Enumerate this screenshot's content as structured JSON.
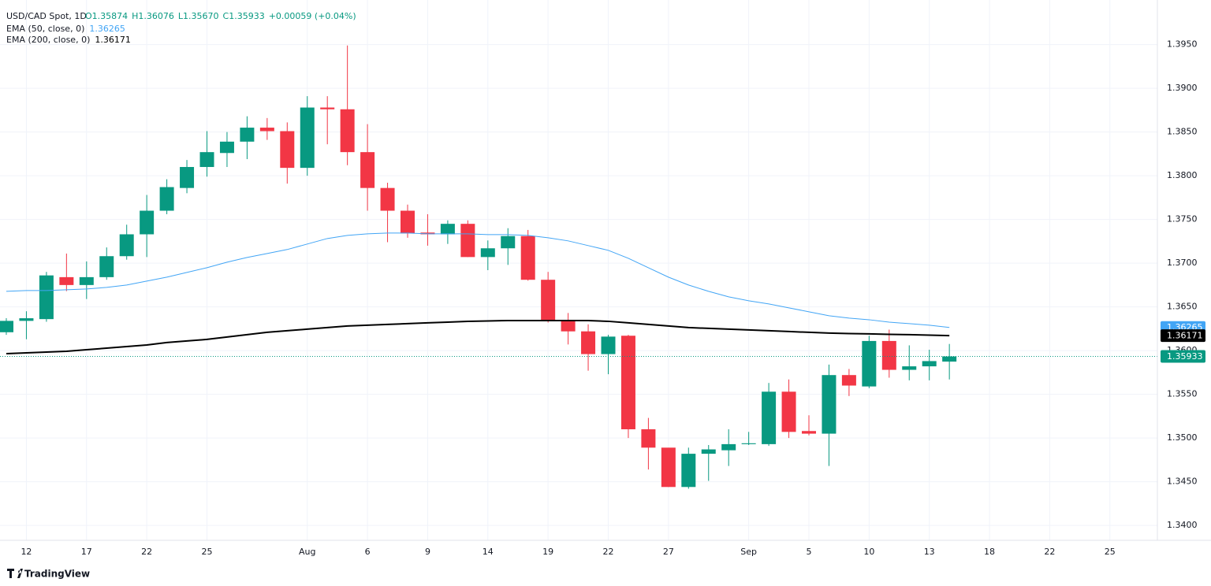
{
  "chart_data": {
    "type": "candlestick",
    "title": "USD/CAD Spot, 1D",
    "ohlc_text": [
      "O1.35874",
      "H1.36076",
      "L1.35670",
      "C1.35933"
    ],
    "change": "+0.00059 (+0.04%)",
    "brand": "TradingView",
    "up_color": "#089981",
    "down_color": "#f23645",
    "grid": true,
    "categories": [
      null,
      "12",
      null,
      null,
      "17",
      null,
      null,
      "22",
      null,
      null,
      "25",
      null,
      null,
      null,
      null,
      "Aug",
      null,
      null,
      "6",
      null,
      null,
      "9",
      null,
      null,
      "14",
      null,
      null,
      "19",
      null,
      null,
      "22",
      null,
      null,
      "27",
      null,
      null,
      null,
      "Sep",
      null,
      null,
      "5",
      null,
      null,
      "10",
      null,
      null,
      "13",
      null,
      null,
      "18",
      null,
      null,
      "22",
      null,
      null,
      "25"
    ],
    "open": [
      1.3621,
      1.3634,
      1.3636,
      1.3684,
      1.3675,
      1.3684,
      1.3708,
      1.3733,
      1.376,
      1.3786,
      1.381,
      1.3826,
      1.3839,
      1.3855,
      1.3851,
      1.3809,
      1.3878,
      1.3876,
      1.3827,
      1.3786,
      1.376,
      1.3735,
      1.3733,
      1.3745,
      1.3707,
      1.3717,
      1.3731,
      1.3681,
      1.3635,
      1.3622,
      1.3596,
      1.3617,
      1.351,
      1.3489,
      1.3444,
      1.3482,
      1.3486,
      1.3493,
      1.3493,
      1.3553,
      1.3508,
      1.3505,
      1.3572,
      1.3559,
      1.3611,
      1.3578,
      1.3582,
      1.35874,
      null,
      null,
      null,
      null,
      null,
      null,
      null,
      null
    ],
    "high": [
      1.3637,
      1.3645,
      1.369,
      1.3711,
      1.3702,
      1.3718,
      1.3744,
      1.3778,
      1.3796,
      1.3818,
      1.3851,
      1.385,
      1.3868,
      1.3866,
      1.3861,
      1.3891,
      1.3891,
      1.3949,
      1.3859,
      1.3792,
      1.3767,
      1.3756,
      1.3749,
      1.3749,
      1.3726,
      1.374,
      1.3738,
      1.369,
      1.3643,
      1.363,
      1.3618,
      1.3618,
      1.3523,
      1.3488,
      1.3489,
      1.3492,
      1.351,
      1.3507,
      1.3563,
      1.3567,
      1.3526,
      1.3584,
      1.3579,
      1.3617,
      1.3624,
      1.3606,
      1.3601,
      1.36076,
      null,
      null,
      null,
      null,
      null,
      null,
      null,
      null
    ],
    "low": [
      1.3618,
      1.3613,
      1.3633,
      1.3668,
      1.3659,
      1.3681,
      1.3704,
      1.3707,
      1.3756,
      1.378,
      1.3799,
      1.381,
      1.3819,
      1.3841,
      1.3791,
      1.38,
      1.3836,
      1.3812,
      1.376,
      1.3724,
      1.3729,
      1.372,
      1.3722,
      1.3707,
      1.3692,
      1.3698,
      1.368,
      1.3632,
      1.3607,
      1.3577,
      1.3573,
      1.35,
      1.3464,
      1.3444,
      1.3442,
      1.3451,
      1.3468,
      1.3492,
      1.3491,
      1.35,
      1.3503,
      1.3468,
      1.3548,
      1.3557,
      1.3569,
      1.3566,
      1.3566,
      1.3567,
      null,
      null,
      null,
      null,
      null,
      null,
      null,
      null
    ],
    "close": [
      1.3634,
      1.3637,
      1.3686,
      1.3675,
      1.3684,
      1.3708,
      1.3733,
      1.376,
      1.3787,
      1.381,
      1.3827,
      1.3839,
      1.3855,
      1.3851,
      1.3809,
      1.3878,
      1.3876,
      1.3827,
      1.3786,
      1.376,
      1.3734,
      1.3733,
      1.3745,
      1.3707,
      1.3717,
      1.3731,
      1.3681,
      1.3635,
      1.3622,
      1.3596,
      1.3616,
      1.351,
      1.3489,
      1.3444,
      1.3482,
      1.3487,
      1.3493,
      1.3494,
      1.3553,
      1.3507,
      1.3505,
      1.3572,
      1.356,
      1.3611,
      1.3578,
      1.3582,
      1.3588,
      1.35933,
      null,
      null,
      null,
      null,
      null,
      null,
      null,
      null
    ],
    "series": [
      {
        "name": "EMA (50, close, 0)",
        "color": "#42a5f5",
        "width": 1,
        "values": [
          1.36678,
          1.36687,
          1.36687,
          1.36696,
          1.36705,
          1.36723,
          1.3675,
          1.36795,
          1.3684,
          1.36894,
          1.36948,
          1.37011,
          1.37065,
          1.3711,
          1.37156,
          1.37219,
          1.37282,
          1.37318,
          1.37336,
          1.37345,
          1.37345,
          1.37336,
          1.37336,
          1.37336,
          1.37327,
          1.37327,
          1.37318,
          1.37291,
          1.37255,
          1.37201,
          1.37147,
          1.37056,
          1.36948,
          1.3684,
          1.3675,
          1.36678,
          1.36615,
          1.3657,
          1.36534,
          1.36489,
          1.36444,
          1.36399,
          1.36372,
          1.36353,
          1.36326,
          1.36308,
          1.3629,
          1.36265,
          null,
          null,
          null,
          null,
          null,
          null,
          null,
          null
        ],
        "tag_color": "#42a5f5"
      },
      {
        "name": "EMA (200, close, 0)",
        "color": "#000000",
        "width": 2,
        "values": [
          1.35965,
          1.35974,
          1.35983,
          1.35992,
          1.3601,
          1.36028,
          1.36046,
          1.36064,
          1.36092,
          1.3611,
          1.36128,
          1.36155,
          1.36182,
          1.36209,
          1.36227,
          1.36245,
          1.36263,
          1.36281,
          1.3629,
          1.36299,
          1.36308,
          1.36317,
          1.36326,
          1.36335,
          1.36339,
          1.36344,
          1.36344,
          1.36344,
          1.36344,
          1.36344,
          1.36335,
          1.36317,
          1.36299,
          1.36281,
          1.36263,
          1.36254,
          1.36245,
          1.36236,
          1.36227,
          1.36218,
          1.36209,
          1.362,
          1.36195,
          1.36191,
          1.36186,
          1.36182,
          1.36177,
          1.36171,
          null,
          null,
          null,
          null,
          null,
          null,
          null,
          null
        ],
        "tag_color": "#000000"
      }
    ],
    "ylim": [
      1.3383,
      1.4001
    ],
    "yticks": [
      {
        "value": 1.34,
        "label": "1.3400"
      },
      {
        "value": 1.345,
        "label": "1.3450"
      },
      {
        "value": 1.35,
        "label": "1.3500"
      },
      {
        "value": 1.355,
        "label": "1.3550"
      },
      {
        "value": 1.36,
        "label": "1.3600"
      },
      {
        "value": 1.365,
        "label": "1.3650"
      },
      {
        "value": 1.37,
        "label": "1.3700"
      },
      {
        "value": 1.375,
        "label": "1.3750"
      },
      {
        "value": 1.38,
        "label": "1.3800"
      },
      {
        "value": 1.385,
        "label": "1.3850"
      },
      {
        "value": 1.39,
        "label": "1.3900"
      },
      {
        "value": 1.395,
        "label": "1.3950"
      }
    ]
  }
}
